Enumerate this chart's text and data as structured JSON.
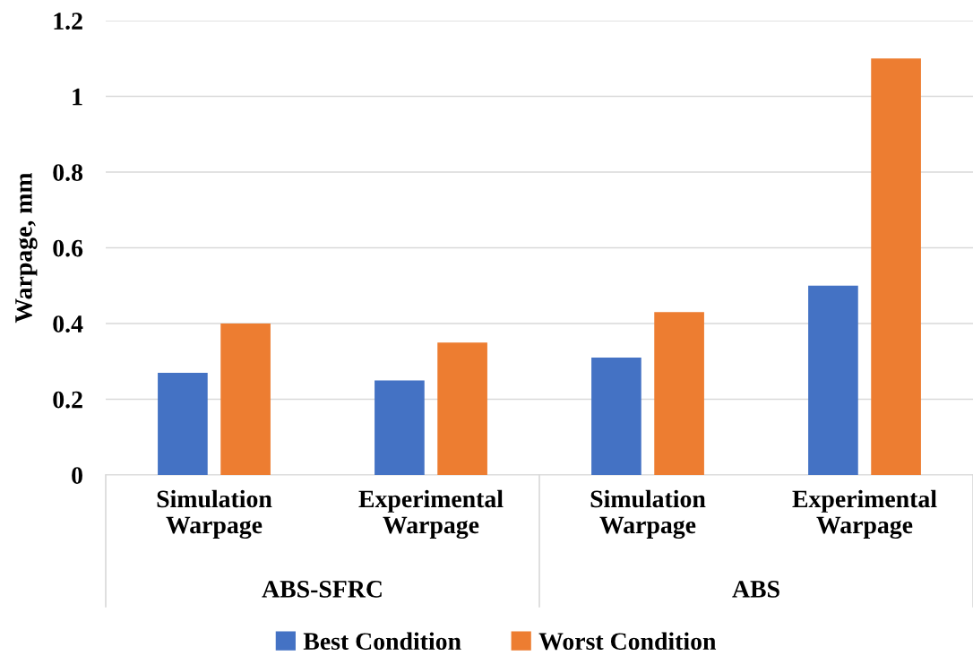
{
  "chart_data": {
    "type": "bar",
    "ylabel": "Warpage, mm",
    "categories": [
      "Simulation\nWarpage",
      "Experimental\nWarpage",
      "Simulation\nWarpage",
      "Experimental\nWarpage"
    ],
    "series": [
      {
        "name": "Best Condition",
        "color": "#4472c4",
        "values": [
          0.27,
          0.25,
          0.31,
          0.5
        ]
      },
      {
        "name": "Worst Condition",
        "color": "#ed7d31",
        "values": [
          0.4,
          0.35,
          0.43,
          1.1
        ]
      }
    ],
    "annotations": [
      "ABS-SFRC",
      "ABS"
    ],
    "ylim": [
      0,
      1.2
    ],
    "yticks": [
      0,
      0.2,
      0.4,
      0.6,
      0.8,
      1,
      1.2
    ],
    "grid": "y",
    "legend": "bottom"
  }
}
